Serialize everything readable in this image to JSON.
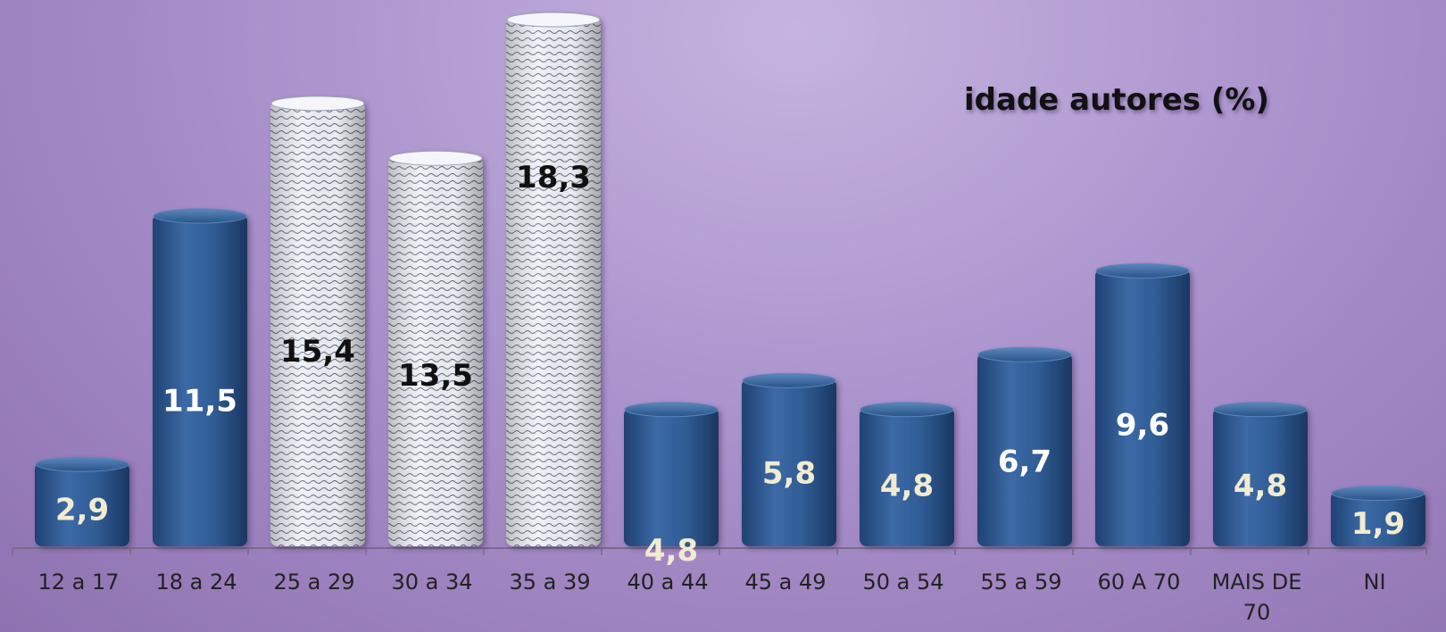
{
  "chart_data": {
    "type": "bar",
    "title": "idade autores (%)",
    "categories": [
      "12 a 17",
      "18 a 24",
      "25 a 29",
      "30 a 34",
      "35 a 39",
      "40 a 44",
      "45 a 49",
      "50 a 54",
      "55 a 59",
      "60 A 70",
      "MAIS DE 70",
      "NI"
    ],
    "category_lines": [
      [
        "12 a 17"
      ],
      [
        "18 a 24"
      ],
      [
        "25 a 29"
      ],
      [
        "30 a 34"
      ],
      [
        "35 a 39"
      ],
      [
        "40 a 44"
      ],
      [
        "45 a 49"
      ],
      [
        "50 a 54"
      ],
      [
        "55 a 59"
      ],
      [
        "60 A 70"
      ],
      [
        "MAIS DE",
        "70"
      ],
      [
        "NI"
      ]
    ],
    "values": [
      2.9,
      11.5,
      15.4,
      13.5,
      18.3,
      4.8,
      5.8,
      4.8,
      6.7,
      9.6,
      4.8,
      1.9
    ],
    "value_labels": [
      "2,9",
      "11,5",
      "15,4",
      "13,5",
      "18,3",
      "4,8",
      "5,8",
      "4,8",
      "6,7",
      "9,6",
      "4,8",
      "1,9"
    ],
    "highlighted": [
      false,
      false,
      true,
      true,
      true,
      false,
      false,
      false,
      false,
      false,
      false,
      false
    ],
    "ylim": [
      0,
      18.3
    ],
    "xlabel": "",
    "ylabel": "",
    "grid": false,
    "legend": "none",
    "colors": {
      "bar": "#2f5c94",
      "bar_dark": "#1c3d68",
      "highlight_bar": "#e8ecf2",
      "label_light": "#ffffff",
      "label_dark": "#111111",
      "label_cream": "#f2ebd2",
      "tick_text": "#222222",
      "axis": "#7a6a8e"
    }
  }
}
